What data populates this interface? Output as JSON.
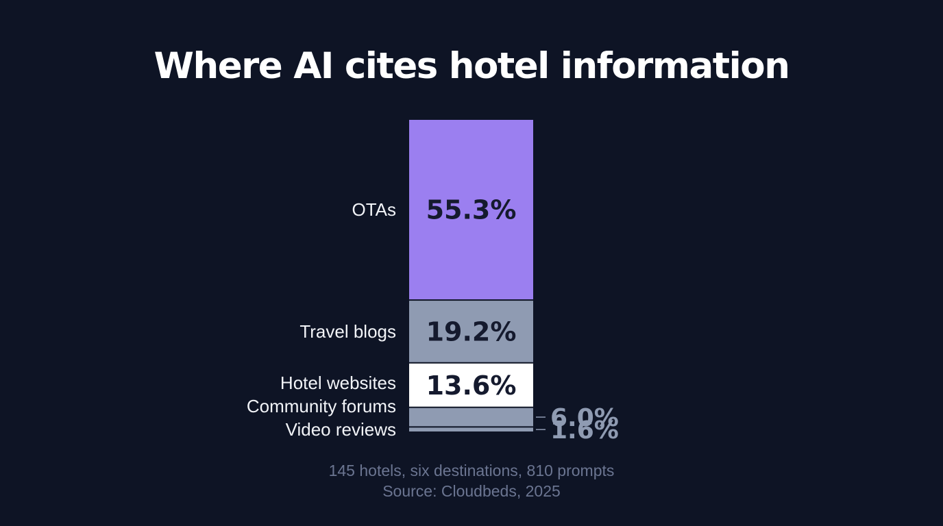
{
  "chart_data": {
    "type": "bar",
    "title": "Where AI cites hotel information",
    "stacked": true,
    "orientation": "vertical",
    "unit": "%",
    "categories": [
      "OTAs",
      "Travel blogs",
      "Hotel websites",
      "Community forums",
      "Video reviews"
    ],
    "values": [
      55.3,
      19.2,
      13.6,
      6.0,
      1.6
    ],
    "value_labels": [
      "55.3%",
      "19.2%",
      "13.6%",
      "6.0%",
      "1.6%"
    ],
    "colors": [
      "#9b7ff0",
      "#8f9bb2",
      "#ffffff",
      "#8f9bb2",
      "#8f9bb2"
    ],
    "notes": [
      "145 hotels, six destinations, 810 prompts",
      "Source: Cloudbeds, 2025"
    ]
  },
  "colors": {
    "background": "#0e1425",
    "outside_label": "#8f9bb2"
  }
}
